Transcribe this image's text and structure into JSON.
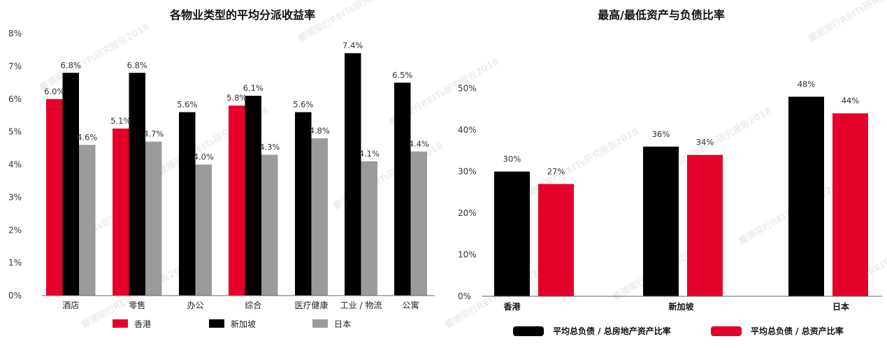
{
  "colors": {
    "hongkong": "#e4002b",
    "singapore": "#000000",
    "japan": "#9b9b9b"
  },
  "watermark": "戴德梁行REITs研究报告2018",
  "chart_data": [
    {
      "type": "bar",
      "title": "各物业类型的平均分派收益率",
      "categories": [
        "酒店",
        "零售",
        "办公",
        "综合",
        "医疗健康",
        "工业 / 物流",
        "公寓"
      ],
      "series": [
        {
          "name": "香港",
          "color": "#e4002b",
          "values": [
            6.0,
            5.1,
            null,
            5.8,
            null,
            null,
            null
          ]
        },
        {
          "name": "新加坡",
          "color": "#000000",
          "values": [
            6.8,
            6.8,
            5.6,
            6.1,
            5.6,
            7.4,
            6.5
          ]
        },
        {
          "name": "日本",
          "color": "#9b9b9b",
          "values": [
            4.6,
            4.7,
            4.0,
            4.3,
            4.8,
            4.1,
            4.4
          ]
        }
      ],
      "ylim": [
        0,
        8
      ],
      "yticks": [
        "0%",
        "1%",
        "2%",
        "3%",
        "4%",
        "5%",
        "6%",
        "7%",
        "8%"
      ],
      "value_suffix": "%",
      "value_decimals": 1,
      "legend_position": "bottom"
    },
    {
      "type": "bar",
      "title": "最高/最低资产与负债比率",
      "categories": [
        "香港",
        "新加坡",
        "日本"
      ],
      "series": [
        {
          "name": "平均总负债 / 总房地产资产比率",
          "color": "#000000",
          "values": [
            30,
            36,
            48
          ]
        },
        {
          "name": "平均总负债 / 总资产比率",
          "color": "#e4002b",
          "values": [
            27,
            34,
            44
          ]
        }
      ],
      "ylim": [
        0,
        50
      ],
      "yticks": [
        "0%",
        "10%",
        "20%",
        "30%",
        "40%",
        "50%"
      ],
      "value_suffix": "%",
      "value_decimals": 0,
      "legend_position": "bottom"
    }
  ]
}
